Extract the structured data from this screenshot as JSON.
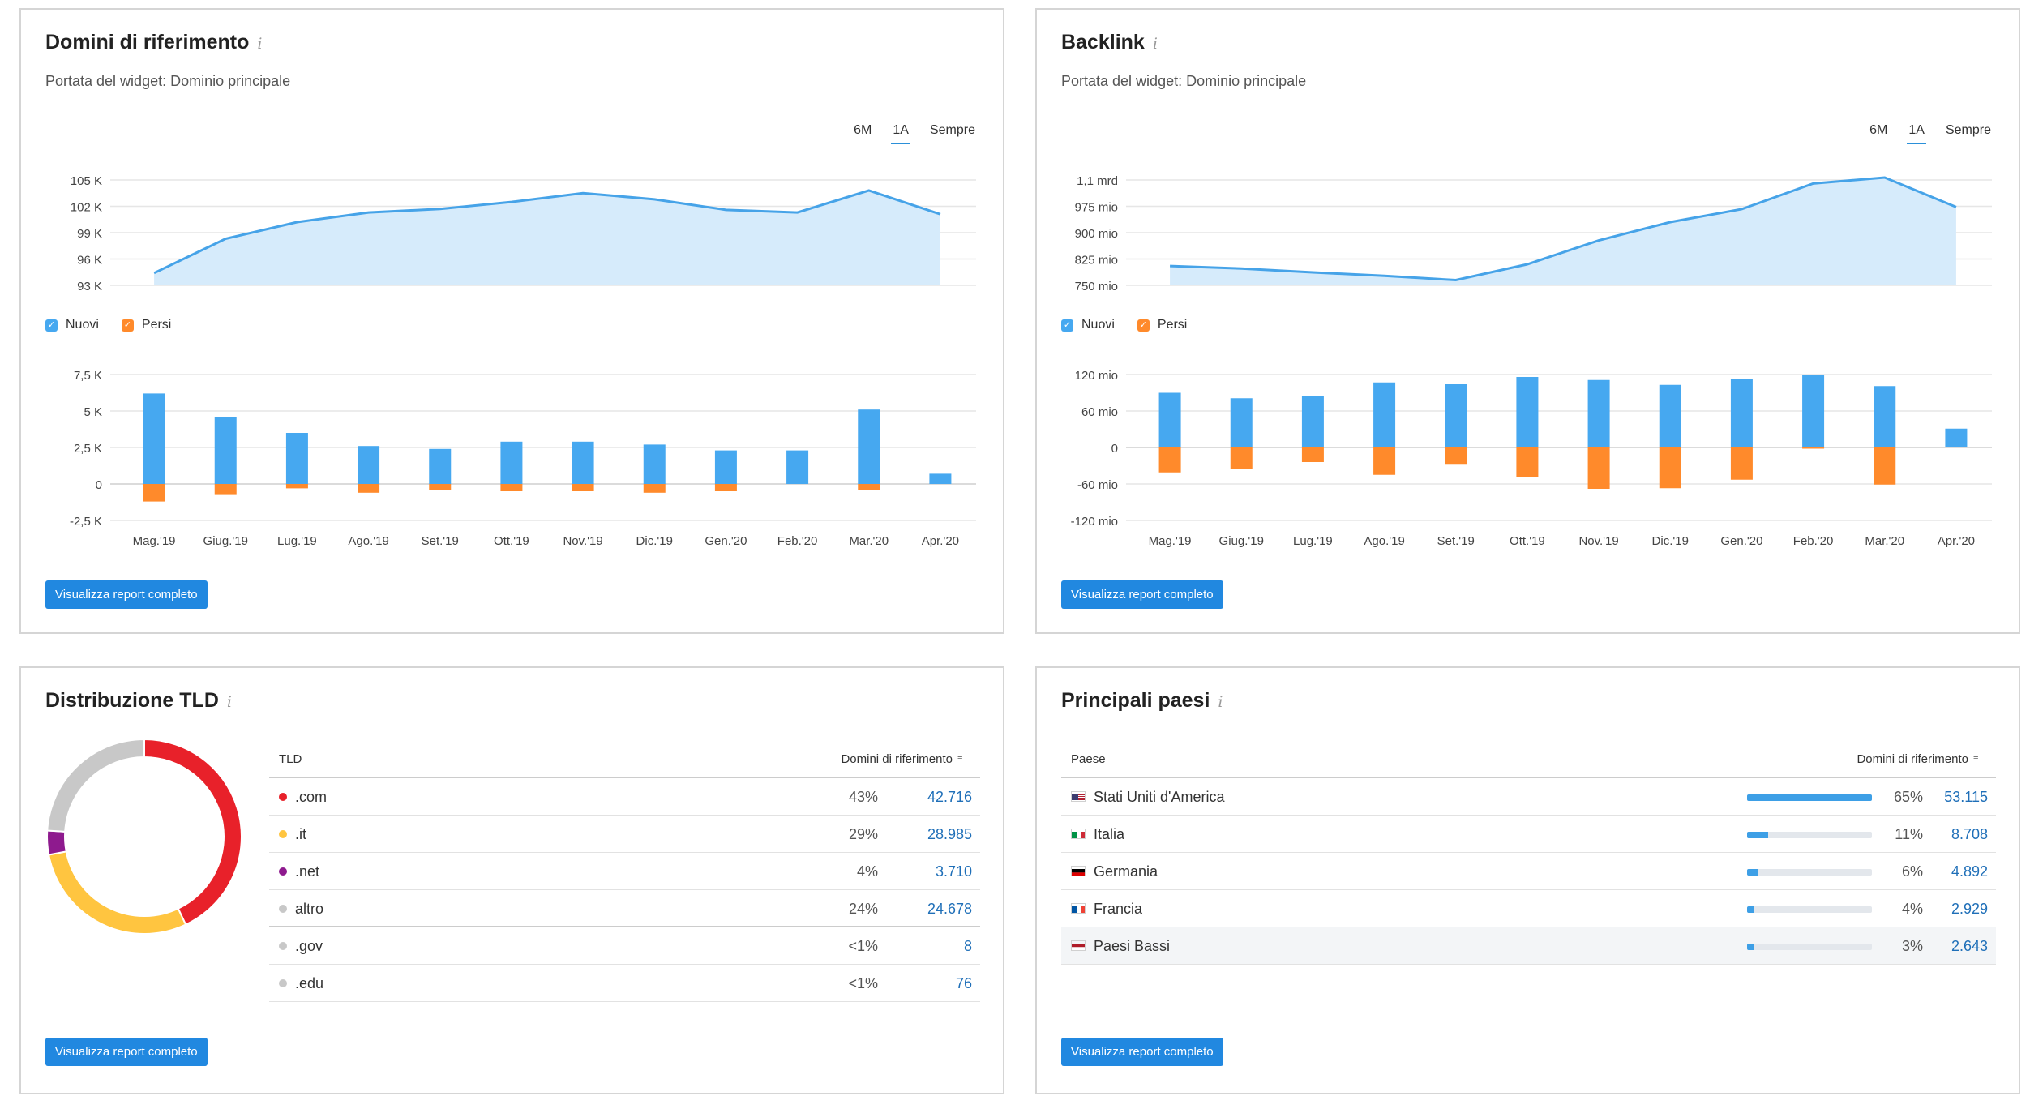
{
  "cards": {
    "referring_domains": {
      "title": "Domini di riferimento",
      "info_icon": "i",
      "subtitle": "Portata del widget: Dominio principale",
      "tabs": [
        "6M",
        "1A",
        "Sempre"
      ],
      "active_tab": "1A",
      "legend": {
        "new": "Nuovi",
        "lost": "Persi"
      },
      "button": "Visualizza report completo"
    },
    "backlinks": {
      "title": "Backlink",
      "info_icon": "i",
      "subtitle": "Portata del widget: Dominio principale",
      "tabs": [
        "6M",
        "1A",
        "Sempre"
      ],
      "active_tab": "1A",
      "legend": {
        "new": "Nuovi",
        "lost": "Persi"
      },
      "button": "Visualizza report completo"
    },
    "tld": {
      "title": "Distribuzione TLD",
      "info_icon": "i",
      "col_tld": "TLD",
      "col_domains": "Domini di riferimento",
      "rows": [
        {
          "name": ".com",
          "pct": "43%",
          "value": "42.716",
          "color": "#e8212a"
        },
        {
          "name": ".it",
          "pct": "29%",
          "value": "28.985",
          "color": "#ffc540"
        },
        {
          "name": ".net",
          "pct": "4%",
          "value": "3.710",
          "color": "#8e1a8e"
        },
        {
          "name": "altro",
          "pct": "24%",
          "value": "24.678",
          "color": "#c8c8c8"
        },
        {
          "name": ".gov",
          "pct": "<1%",
          "value": "8",
          "color": "#c8c8c8"
        },
        {
          "name": ".edu",
          "pct": "<1%",
          "value": "76",
          "color": "#c8c8c8"
        }
      ],
      "button": "Visualizza report completo"
    },
    "countries": {
      "title": "Principali paesi",
      "info_icon": "i",
      "col_country": "Paese",
      "col_domains": "Domini di riferimento",
      "rows": [
        {
          "name": "Stati Uniti d'America",
          "pct": "65%",
          "share": 1.0,
          "value": "53.115",
          "flag": "us-flag-icon"
        },
        {
          "name": "Italia",
          "pct": "11%",
          "share": 0.17,
          "value": "8.708",
          "flag": "it-flag-icon"
        },
        {
          "name": "Germania",
          "pct": "6%",
          "share": 0.09,
          "value": "4.892",
          "flag": "de-flag-icon"
        },
        {
          "name": "Francia",
          "pct": "4%",
          "share": 0.055,
          "value": "2.929",
          "flag": "fr-flag-icon"
        },
        {
          "name": "Paesi Bassi",
          "pct": "3%",
          "share": 0.05,
          "value": "2.643",
          "flag": "nl-flag-icon"
        }
      ],
      "button": "Visualizza report completo"
    }
  },
  "colors": {
    "line": "#46a3e8",
    "area": "#d6ebfb",
    "new": "#46a8f0",
    "lost": "#ff8a2b",
    "grid": "#e6e6e6",
    "button": "#2188e0",
    "link": "#1f6fb8"
  },
  "chart_data": [
    {
      "id": "rd_trend",
      "type": "area",
      "categories": [
        "Mag.'19",
        "Giug.'19",
        "Lug.'19",
        "Ago.'19",
        "Set.'19",
        "Ott.'19",
        "Nov.'19",
        "Dic.'19",
        "Gen.'20",
        "Feb.'20",
        "Mar.'20",
        "Apr.'20"
      ],
      "values": [
        94400,
        98300,
        100200,
        101300,
        101700,
        102500,
        103500,
        102800,
        101600,
        101300,
        103800,
        101100
      ],
      "yticks": [
        93000,
        96000,
        99000,
        102000,
        105000
      ],
      "ytick_labels": [
        "93 K",
        "96 K",
        "99 K",
        "102 K",
        "105 K"
      ],
      "ylim": [
        93000,
        105000
      ]
    },
    {
      "id": "rd_newlost",
      "type": "bar",
      "categories": [
        "Mag.'19",
        "Giug.'19",
        "Lug.'19",
        "Ago.'19",
        "Set.'19",
        "Ott.'19",
        "Nov.'19",
        "Dic.'19",
        "Gen.'20",
        "Feb.'20",
        "Mar.'20",
        "Apr.'20"
      ],
      "series": [
        {
          "name": "Nuovi",
          "values": [
            6200,
            4600,
            3500,
            2600,
            2400,
            2900,
            2900,
            2700,
            2300,
            2300,
            5100,
            700
          ]
        },
        {
          "name": "Persi",
          "values": [
            -1200,
            -700,
            -300,
            -600,
            -400,
            -500,
            -500,
            -600,
            -500,
            0,
            -400,
            0
          ]
        }
      ],
      "yticks": [
        -2500,
        0,
        2500,
        5000,
        7500
      ],
      "ytick_labels": [
        "-2,5 K",
        "0",
        "2,5 K",
        "5 K",
        "7,5 K"
      ],
      "ylim": [
        -2500,
        7500
      ]
    },
    {
      "id": "bl_trend",
      "type": "area",
      "categories": [
        "Mag.'19",
        "Giug.'19",
        "Lug.'19",
        "Ago.'19",
        "Set.'19",
        "Ott.'19",
        "Nov.'19",
        "Dic.'19",
        "Gen.'20",
        "Feb.'20",
        "Mar.'20",
        "Apr.'20"
      ],
      "values": [
        805,
        798,
        787,
        777,
        765,
        810,
        878,
        930,
        967,
        1040,
        1057,
        973
      ],
      "yticks": [
        750,
        825,
        900,
        975,
        1100
      ],
      "ytick_labels": [
        "750 mio",
        "825 mio",
        "900 mio",
        "975 mio",
        "1,1 mrd"
      ],
      "ylim": [
        750,
        1050
      ]
    },
    {
      "id": "bl_newlost",
      "type": "bar",
      "categories": [
        "Mag.'19",
        "Giug.'19",
        "Lug.'19",
        "Ago.'19",
        "Set.'19",
        "Ott.'19",
        "Nov.'19",
        "Dic.'19",
        "Gen.'20",
        "Feb.'20",
        "Mar.'20",
        "Apr.'20"
      ],
      "series": [
        {
          "name": "Nuovi",
          "values": [
            90,
            81,
            84,
            107,
            104,
            116,
            111,
            103,
            113,
            119,
            101,
            31
          ]
        },
        {
          "name": "Persi",
          "values": [
            -41,
            -36,
            -24,
            -45,
            -27,
            -48,
            -68,
            -67,
            -53,
            -2,
            -61,
            0
          ]
        }
      ],
      "yticks": [
        -120,
        -60,
        0,
        60,
        120
      ],
      "ytick_labels": [
        "-120 mio",
        "-60 mio",
        "0",
        "60 mio",
        "120 mio"
      ],
      "ylim": [
        -120,
        120
      ]
    },
    {
      "id": "tld_donut",
      "type": "pie",
      "categories": [
        ".com",
        ".it",
        ".net",
        "altro",
        ".gov",
        ".edu"
      ],
      "values": [
        43,
        29,
        4,
        24,
        0,
        0
      ],
      "colors": [
        "#e8212a",
        "#ffc540",
        "#8e1a8e",
        "#c8c8c8",
        "#c8c8c8",
        "#c8c8c8"
      ]
    }
  ]
}
